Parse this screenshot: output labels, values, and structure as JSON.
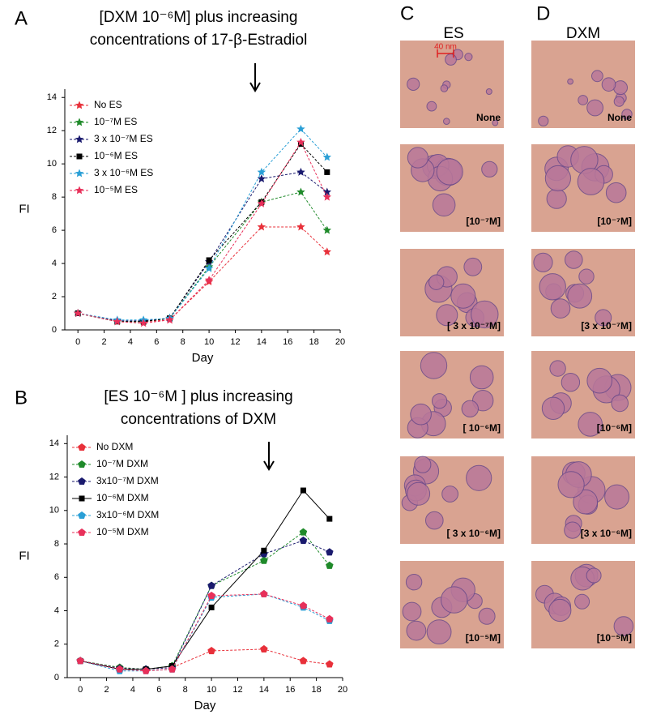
{
  "chart_data": [
    {
      "type": "line",
      "letter": "A",
      "title": [
        "[DXM 10⁻⁶M] plus increasing",
        "concentrations of 17-β-Estradiol"
      ],
      "x_label": "Day",
      "y_label": "FI",
      "x": [
        0,
        3,
        5,
        7,
        10,
        14,
        17,
        19
      ],
      "xlim": [
        -1,
        20
      ],
      "xticks": [
        0,
        2,
        4,
        6,
        8,
        10,
        12,
        14,
        16,
        18,
        20
      ],
      "ylim": [
        0,
        14.5
      ],
      "yticks": [
        0,
        2,
        4,
        6,
        8,
        10,
        12,
        14
      ],
      "legend": "upper left",
      "series": [
        {
          "name": "No ES",
          "color": "#e8303a",
          "marker": "star",
          "dash": true,
          "values": [
            1,
            0.5,
            0.5,
            0.6,
            2.9,
            6.2,
            6.2,
            4.7
          ]
        },
        {
          "name": "10⁻⁷M ES",
          "color": "#1f8a2a",
          "marker": "star",
          "dash": true,
          "values": [
            1,
            0.5,
            0.5,
            0.7,
            3.8,
            7.7,
            8.3,
            6.0
          ]
        },
        {
          "name": "3 x 10⁻⁷M ES",
          "color": "#1a1a6e",
          "marker": "star",
          "dash": true,
          "values": [
            1,
            0.55,
            0.55,
            0.7,
            4.1,
            9.1,
            9.5,
            8.3
          ]
        },
        {
          "name": "10⁻⁶M ES",
          "color": "#000000",
          "marker": "square",
          "dash": true,
          "values": [
            1,
            0.5,
            0.5,
            0.7,
            4.2,
            7.7,
            11.2,
            9.5
          ]
        },
        {
          "name": "3 x 10⁻⁶M ES",
          "color": "#2a9fd6",
          "marker": "star",
          "dash": true,
          "values": [
            1,
            0.6,
            0.6,
            0.7,
            3.7,
            9.5,
            12.1,
            10.4
          ]
        },
        {
          "name": "10⁻⁵M ES",
          "color": "#e8305a",
          "marker": "star",
          "dash": true,
          "values": [
            1,
            0.5,
            0.4,
            0.6,
            3.0,
            7.6,
            11.3,
            8.0
          ]
        }
      ]
    },
    {
      "type": "line",
      "letter": "B",
      "title": [
        "[ES 10⁻⁶M ] plus increasing",
        "concentrations of  DXM"
      ],
      "x_label": "Day",
      "y_label": "FI",
      "x": [
        0,
        3,
        5,
        7,
        10,
        14,
        17,
        19
      ],
      "xlim": [
        -1,
        20
      ],
      "xticks": [
        0,
        2,
        4,
        6,
        8,
        10,
        12,
        14,
        16,
        18,
        20
      ],
      "ylim": [
        0,
        14.5
      ],
      "yticks": [
        0,
        2,
        4,
        6,
        8,
        10,
        12,
        14
      ],
      "legend": "upper left",
      "series": [
        {
          "name": "No DXM",
          "color": "#e8303a",
          "marker": "pentagon",
          "dash": true,
          "values": [
            1,
            0.6,
            0.5,
            0.6,
            1.6,
            1.7,
            1.0,
            0.8
          ]
        },
        {
          "name": "10⁻⁷M DXM",
          "color": "#1f8a2a",
          "marker": "pentagon",
          "dash": true,
          "values": [
            1,
            0.6,
            0.5,
            0.7,
            5.5,
            7.0,
            8.7,
            6.7
          ]
        },
        {
          "name": "3x10⁻⁷M DXM",
          "color": "#1a1a6e",
          "marker": "pentagon",
          "dash": true,
          "values": [
            1,
            0.55,
            0.5,
            0.6,
            5.5,
            7.4,
            8.2,
            7.5
          ]
        },
        {
          "name": "10⁻⁶M DXM",
          "color": "#000000",
          "marker": "square",
          "dash": false,
          "values": [
            1,
            0.5,
            0.5,
            0.7,
            4.2,
            7.6,
            11.2,
            9.5
          ]
        },
        {
          "name": "3x10⁻⁶M DXM",
          "color": "#2a9fd6",
          "marker": "pentagon",
          "dash": true,
          "values": [
            1,
            0.4,
            0.4,
            0.5,
            4.8,
            5.0,
            4.2,
            3.4
          ]
        },
        {
          "name": "10⁻⁵M DXM",
          "color": "#e8305a",
          "marker": "pentagon",
          "dash": true,
          "values": [
            1,
            0.5,
            0.4,
            0.5,
            4.9,
            5.0,
            4.3,
            3.5
          ]
        }
      ]
    }
  ],
  "images": [
    {
      "letter": "C",
      "header": "ES",
      "scale_bar": "40 nm",
      "labels": [
        "None",
        "[10⁻⁷M]",
        "[ 3 x 10⁻⁷M]",
        "[ 10⁻⁶M]",
        "[ 3 x 10⁻⁶M]",
        "[10⁻⁵M]"
      ]
    },
    {
      "letter": "D",
      "header": "DXM",
      "labels": [
        "None",
        "[10⁻⁷M]",
        "[3 x 10⁻⁷M]",
        "[10⁻⁶M]",
        "[3 x 10⁻⁶M]",
        "[10⁻⁵M]"
      ]
    }
  ]
}
